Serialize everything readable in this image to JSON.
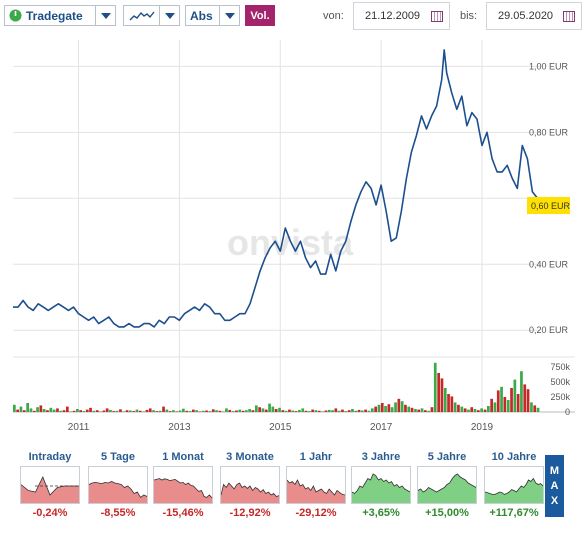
{
  "toolbar": {
    "exchange": "Tradegate",
    "chart_style_icon": "line-chart-icon",
    "mode": "Abs",
    "volume_button": "Vol.",
    "from_label": "von:",
    "from_date": "21.12.2009",
    "to_label": "bis:",
    "to_date": "29.05.2020"
  },
  "watermark": "onvista",
  "colors": {
    "line": "#1c4f8f",
    "highlight": "#ffe000",
    "vol_up": "#3aa94a",
    "vol_down": "#c62828",
    "neg_fill": "#e88c8c",
    "pos_fill": "#7fcf85",
    "neg_text": "#c62828",
    "pos_text": "#2e8b2e",
    "max_button": "#1b5a9e"
  },
  "chart_data": {
    "type": "line",
    "xlabel": "",
    "ylabel": "",
    "x_ticks": [
      "2011",
      "2013",
      "2015",
      "2017",
      "2019"
    ],
    "y_ticks": [
      "0,20 EUR",
      "0,40 EUR",
      "0,60 EUR",
      "0,80 EUR",
      "1,00 EUR"
    ],
    "ylim": [
      0.14,
      1.08
    ],
    "current_value_label": "0,60 EUR",
    "series": [
      {
        "x": [
          2010.0,
          2010.1,
          2010.2,
          2010.3,
          2010.4,
          2010.5,
          2010.6,
          2010.7,
          2010.8,
          2010.9,
          2011.0,
          2011.1,
          2011.2,
          2011.3,
          2011.4,
          2011.5,
          2011.6,
          2011.7,
          2011.8,
          2011.9,
          2012.0,
          2012.1,
          2012.2,
          2012.3,
          2012.4,
          2012.5,
          2012.6,
          2012.7,
          2012.8,
          2012.9,
          2013.0,
          2013.1,
          2013.2,
          2013.3,
          2013.4,
          2013.5,
          2013.6,
          2013.7,
          2013.8,
          2013.9,
          2014.0,
          2014.1,
          2014.2,
          2014.3,
          2014.4,
          2014.5,
          2014.6,
          2014.7,
          2014.8,
          2014.9,
          2015.0,
          2015.1,
          2015.2,
          2015.3,
          2015.4,
          2015.5,
          2015.6,
          2015.7,
          2015.8,
          2015.9,
          2016.0,
          2016.1,
          2016.2,
          2016.3,
          2016.4,
          2016.5,
          2016.6,
          2016.7,
          2016.8,
          2016.9,
          2017.0,
          2017.1,
          2017.2,
          2017.3,
          2017.4,
          2017.5,
          2017.6,
          2017.7,
          2017.8,
          2017.9,
          2018.0,
          2018.1,
          2018.2,
          2018.3,
          2018.4,
          2018.5,
          2018.55,
          2018.6,
          2018.7,
          2018.8,
          2018.9,
          2019.0,
          2019.1,
          2019.2,
          2019.3,
          2019.4,
          2019.5,
          2019.6,
          2019.7,
          2019.8,
          2019.9,
          2020.0,
          2020.1,
          2020.2,
          2020.3,
          2020.4
        ],
        "values": [
          0.27,
          0.27,
          0.29,
          0.27,
          0.26,
          0.28,
          0.27,
          0.26,
          0.27,
          0.28,
          0.27,
          0.26,
          0.27,
          0.25,
          0.24,
          0.23,
          0.24,
          0.22,
          0.23,
          0.24,
          0.22,
          0.21,
          0.21,
          0.22,
          0.21,
          0.21,
          0.22,
          0.22,
          0.21,
          0.23,
          0.22,
          0.24,
          0.24,
          0.23,
          0.25,
          0.26,
          0.27,
          0.26,
          0.28,
          0.27,
          0.25,
          0.25,
          0.23,
          0.23,
          0.24,
          0.25,
          0.25,
          0.28,
          0.33,
          0.38,
          0.42,
          0.45,
          0.47,
          0.44,
          0.51,
          0.47,
          0.44,
          0.47,
          0.42,
          0.39,
          0.41,
          0.37,
          0.37,
          0.43,
          0.38,
          0.44,
          0.47,
          0.53,
          0.58,
          0.62,
          0.65,
          0.63,
          0.58,
          0.64,
          0.56,
          0.47,
          0.48,
          0.56,
          0.66,
          0.74,
          0.79,
          0.85,
          0.81,
          0.85,
          0.88,
          0.96,
          1.05,
          0.98,
          0.92,
          0.87,
          0.91,
          0.82,
          0.86,
          0.84,
          0.76,
          0.8,
          0.72,
          0.68,
          0.68,
          0.7,
          0.66,
          0.63,
          0.76,
          0.72,
          0.62,
          0.6
        ]
      }
    ],
    "volume": {
      "y_ticks": [
        "0",
        "250k",
        "500k",
        "750k"
      ],
      "ylim": [
        0,
        900000
      ],
      "values": [
        120000,
        40000,
        90000,
        30000,
        150000,
        60000,
        20000,
        80000,
        110000,
        50000,
        30000,
        70000,
        40000,
        60000,
        20000,
        30000,
        90000,
        10000,
        20000,
        50000,
        30000,
        15000,
        40000,
        70000,
        20000,
        30000,
        10000,
        25000,
        60000,
        35000,
        15000,
        20000,
        45000,
        10000,
        30000,
        25000,
        15000,
        40000,
        20000,
        10000,
        35000,
        60000,
        30000,
        15000,
        20000,
        90000,
        40000,
        15000,
        30000,
        10000,
        25000,
        55000,
        20000,
        15000,
        40000,
        30000,
        10000,
        20000,
        25000,
        15000,
        45000,
        30000,
        20000,
        10000,
        60000,
        35000,
        15000,
        25000,
        40000,
        20000,
        30000,
        50000,
        30000,
        110000,
        80000,
        60000,
        40000,
        140000,
        90000,
        50000,
        70000,
        30000,
        20000,
        40000,
        25000,
        15000,
        35000,
        60000,
        20000,
        15000,
        40000,
        30000,
        20000,
        10000,
        25000,
        35000,
        30000,
        60000,
        20000,
        40000,
        15000,
        30000,
        50000,
        20000,
        35000,
        25000,
        40000,
        20000,
        60000,
        90000,
        120000,
        150000,
        100000,
        130000,
        80000,
        160000,
        220000,
        180000,
        120000,
        90000,
        70000,
        50000,
        40000,
        60000,
        30000,
        20000,
        80000,
        820000,
        650000,
        560000,
        400000,
        300000,
        260000,
        160000,
        120000,
        90000,
        60000,
        40000,
        80000,
        50000,
        30000,
        60000,
        40000,
        100000,
        220000,
        160000,
        360000,
        420000,
        250000,
        200000,
        400000,
        540000,
        300000,
        680000,
        460000,
        380000,
        160000,
        110000,
        70000
      ],
      "directions": [
        "up",
        "down",
        "up",
        "down",
        "up",
        "up",
        "down",
        "up",
        "down",
        "up",
        "down",
        "up",
        "up",
        "down",
        "up",
        "down",
        "down",
        "up",
        "down",
        "up",
        "down",
        "up",
        "down",
        "down",
        "up",
        "down",
        "up",
        "down",
        "down",
        "up",
        "down",
        "up",
        "down",
        "up",
        "down",
        "up",
        "down",
        "up",
        "down",
        "up",
        "down",
        "down",
        "up",
        "down",
        "up",
        "down",
        "up",
        "down",
        "up",
        "down",
        "up",
        "up",
        "down",
        "up",
        "down",
        "up",
        "down",
        "up",
        "down",
        "up",
        "down",
        "up",
        "down",
        "up",
        "up",
        "down",
        "up",
        "down",
        "up",
        "down",
        "up",
        "up",
        "down",
        "up",
        "down",
        "up",
        "down",
        "up",
        "up",
        "down",
        "up",
        "down",
        "up",
        "down",
        "up",
        "down",
        "up",
        "up",
        "down",
        "up",
        "down",
        "up",
        "down",
        "up",
        "down",
        "up",
        "up",
        "down",
        "up",
        "down",
        "up",
        "down",
        "up",
        "up",
        "down",
        "up",
        "down",
        "up",
        "up",
        "down",
        "up",
        "down",
        "up",
        "down",
        "up",
        "up",
        "down",
        "up",
        "down",
        "up",
        "down",
        "up",
        "down",
        "up",
        "down",
        "up",
        "down",
        "up",
        "down",
        "down",
        "up",
        "down",
        "down",
        "up",
        "down",
        "up",
        "down",
        "up",
        "down",
        "up",
        "down",
        "up",
        "down",
        "up",
        "down",
        "up",
        "down",
        "up",
        "down",
        "up",
        "down",
        "up",
        "down",
        "up",
        "down",
        "down",
        "up",
        "down",
        "up"
      ]
    }
  },
  "periods": [
    {
      "label": "Intraday",
      "change": "-0,24%",
      "trend": "neg",
      "shape": [
        0.55,
        0.35,
        0.3,
        0.8,
        0.2,
        0.45,
        0.5,
        0.5,
        0.5
      ]
    },
    {
      "label": "5 Tage",
      "change": "-8,55%",
      "trend": "neg",
      "shape": [
        0.55,
        0.6,
        0.62,
        0.6,
        0.58,
        0.62,
        0.6,
        0.65,
        0.6,
        0.58,
        0.55,
        0.45,
        0.5,
        0.4,
        0.25,
        0.3,
        0.12,
        0.2,
        0.15
      ]
    },
    {
      "label": "1 Monat",
      "change": "-15,46%",
      "trend": "neg",
      "shape": [
        0.7,
        0.72,
        0.75,
        0.7,
        0.74,
        0.72,
        0.68,
        0.7,
        0.72,
        0.66,
        0.6,
        0.62,
        0.55,
        0.6,
        0.52,
        0.5,
        0.4,
        0.32,
        0.35,
        0.15,
        0.12,
        0.2,
        0.1
      ]
    },
    {
      "label": "3 Monate",
      "change": "-12,92%",
      "trend": "neg",
      "shape": [
        0.2,
        0.55,
        0.45,
        0.6,
        0.5,
        0.4,
        0.55,
        0.6,
        0.45,
        0.5,
        0.42,
        0.5,
        0.35,
        0.45,
        0.4,
        0.3,
        0.38,
        0.25,
        0.3,
        0.2,
        0.25,
        0.15,
        0.18
      ]
    },
    {
      "label": "1 Jahr",
      "change": "-29,12%",
      "trend": "neg",
      "shape": [
        0.7,
        0.6,
        0.65,
        0.55,
        0.7,
        0.5,
        0.55,
        0.4,
        0.45,
        0.35,
        0.5,
        0.3,
        0.35,
        0.4,
        0.3,
        0.25,
        0.4,
        0.3,
        0.2,
        0.35,
        0.28,
        0.22,
        0.2
      ]
    },
    {
      "label": "3 Jahre",
      "change": "+3,65%",
      "trend": "pos",
      "shape": [
        0.3,
        0.25,
        0.35,
        0.5,
        0.45,
        0.6,
        0.75,
        0.7,
        0.9,
        0.85,
        0.7,
        0.75,
        0.65,
        0.7,
        0.6,
        0.65,
        0.5,
        0.55,
        0.45,
        0.5,
        0.4,
        0.35,
        0.3
      ]
    },
    {
      "label": "5 Jahre",
      "change": "+15,00%",
      "trend": "pos",
      "shape": [
        0.35,
        0.4,
        0.3,
        0.35,
        0.45,
        0.4,
        0.35,
        0.3,
        0.35,
        0.4,
        0.45,
        0.55,
        0.6,
        0.75,
        0.85,
        0.9,
        0.8,
        0.75,
        0.7,
        0.6,
        0.55,
        0.5,
        0.45
      ]
    },
    {
      "label": "10 Jahre",
      "change": "+117,67%",
      "trend": "pos",
      "shape": [
        0.3,
        0.28,
        0.25,
        0.22,
        0.22,
        0.25,
        0.3,
        0.28,
        0.22,
        0.25,
        0.3,
        0.38,
        0.35,
        0.3,
        0.4,
        0.5,
        0.45,
        0.55,
        0.7,
        0.65,
        0.75,
        0.6,
        0.55,
        0.58,
        0.5
      ]
    }
  ],
  "max_button": [
    "M",
    "A",
    "X"
  ]
}
